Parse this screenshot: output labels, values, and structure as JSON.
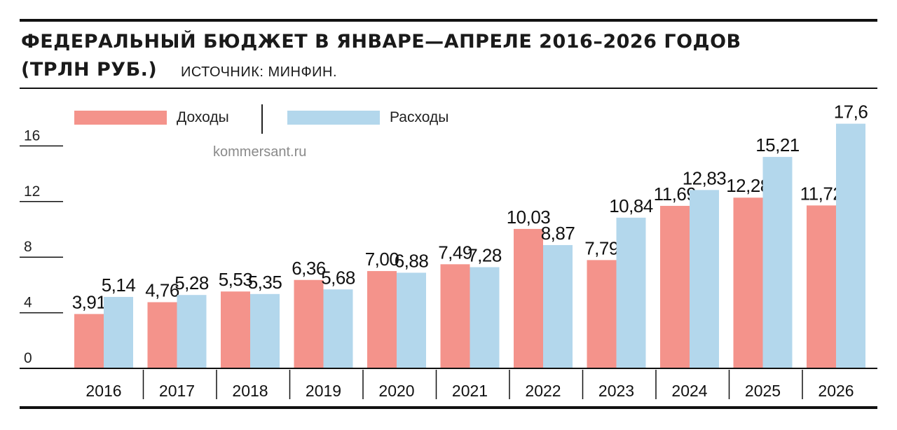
{
  "header": {
    "title_line1": "ФЕДЕРАЛЬНЫЙ БЮДЖЕТ В ЯНВАРЕ—АПРЕЛЕ 2016–2026 ГОДОВ",
    "title_line2": "(ТРЛН РУБ.)",
    "source": "ИСТОЧНИК: МИНФИН.",
    "watermark": "kommersant.ru"
  },
  "colors": {
    "income": "#f4938b",
    "expenses": "#b3d7ec"
  },
  "chart_data": {
    "type": "bar",
    "title": "ФЕДЕРАЛЬНЫЙ БЮДЖЕТ В ЯНВАРЕ—АПРЕЛЕ 2016–2026 ГОДОВ (ТРЛН РУБ.)",
    "categories": [
      "2016",
      "2017",
      "2018",
      "2019",
      "2020",
      "2021",
      "2022",
      "2023",
      "2024",
      "2025",
      "2026"
    ],
    "series": [
      {
        "name": "Доходы",
        "values": [
          3.91,
          4.76,
          5.53,
          6.36,
          7.0,
          7.49,
          10.03,
          7.79,
          11.69,
          12.28,
          11.72
        ],
        "labels": [
          "3,91",
          "4,76",
          "5,53",
          "6,36",
          "7,00",
          "7,49",
          "10,03",
          "7,79",
          "11,69",
          "12,28",
          "11,72"
        ]
      },
      {
        "name": "Расходы",
        "values": [
          5.14,
          5.28,
          5.35,
          5.68,
          6.88,
          7.28,
          8.87,
          10.84,
          12.83,
          15.21,
          17.6
        ],
        "labels": [
          "5,14",
          "5,28",
          "5,35",
          "5,68",
          "6,88",
          "7,28",
          "8,87",
          "10,84",
          "12,83",
          "15,21",
          "17,6"
        ]
      }
    ],
    "yticks": [
      "0",
      "4",
      "8",
      "12",
      "16"
    ],
    "ytick_values": [
      0,
      4,
      8,
      12,
      16
    ],
    "ylim": [
      0,
      18
    ],
    "legend_position": "top-left",
    "grid": false
  }
}
